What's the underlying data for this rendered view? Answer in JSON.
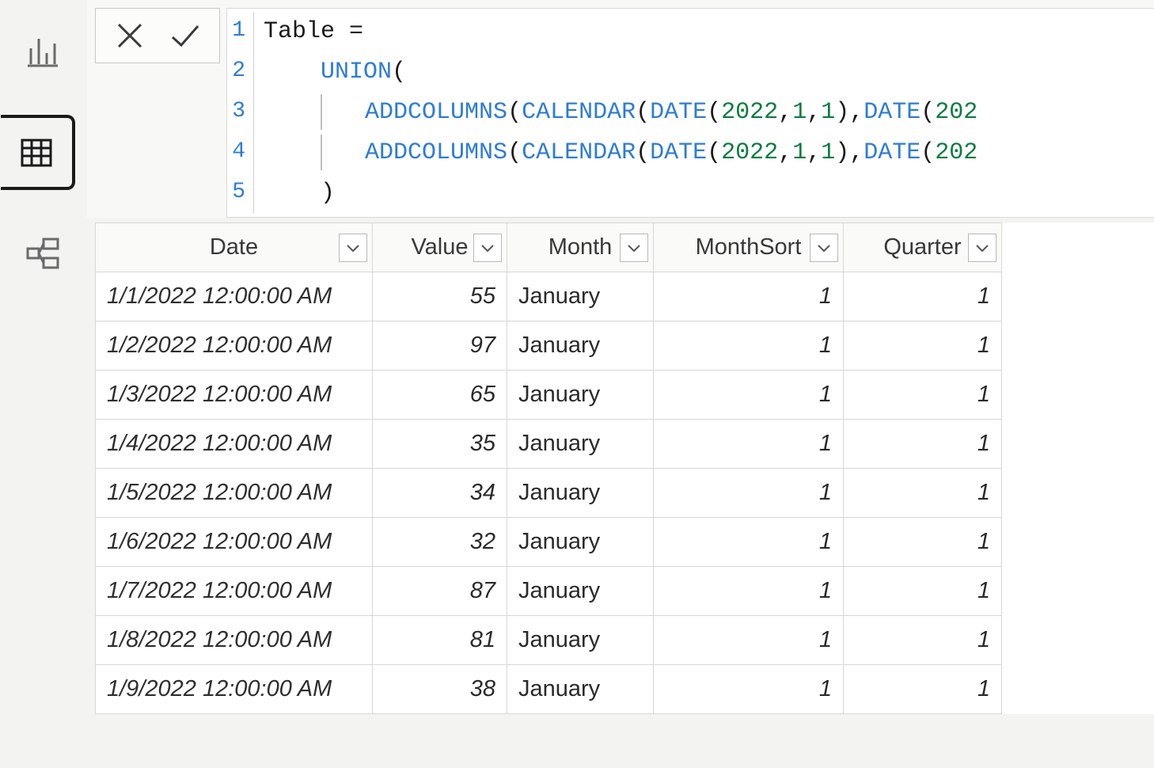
{
  "nav": {
    "items": [
      "report",
      "data",
      "model"
    ],
    "active": "data"
  },
  "formula": {
    "lines": [
      {
        "n": 1,
        "tokens": [
          {
            "t": "plain",
            "v": "Table = "
          }
        ]
      },
      {
        "n": 2,
        "tokens": [
          {
            "t": "plain",
            "v": "    "
          },
          {
            "t": "func",
            "v": "UNION"
          },
          {
            "t": "paren",
            "v": "("
          }
        ]
      },
      {
        "n": 3,
        "tokens": [
          {
            "t": "plain",
            "v": "        "
          },
          {
            "t": "func",
            "v": "ADDCOLUMNS"
          },
          {
            "t": "paren",
            "v": "("
          },
          {
            "t": "func",
            "v": "CALENDAR"
          },
          {
            "t": "paren",
            "v": "("
          },
          {
            "t": "func",
            "v": "DATE"
          },
          {
            "t": "paren",
            "v": "("
          },
          {
            "t": "num",
            "v": "2022"
          },
          {
            "t": "plain",
            "v": ","
          },
          {
            "t": "num",
            "v": "1"
          },
          {
            "t": "plain",
            "v": ","
          },
          {
            "t": "num",
            "v": "1"
          },
          {
            "t": "paren",
            "v": ")"
          },
          {
            "t": "plain",
            "v": ","
          },
          {
            "t": "func",
            "v": "DATE"
          },
          {
            "t": "paren",
            "v": "("
          },
          {
            "t": "num",
            "v": "202"
          }
        ]
      },
      {
        "n": 4,
        "tokens": [
          {
            "t": "plain",
            "v": "        "
          },
          {
            "t": "func",
            "v": "ADDCOLUMNS"
          },
          {
            "t": "paren",
            "v": "("
          },
          {
            "t": "func",
            "v": "CALENDAR"
          },
          {
            "t": "paren",
            "v": "("
          },
          {
            "t": "func",
            "v": "DATE"
          },
          {
            "t": "paren",
            "v": "("
          },
          {
            "t": "num",
            "v": "2022"
          },
          {
            "t": "plain",
            "v": ","
          },
          {
            "t": "num",
            "v": "1"
          },
          {
            "t": "plain",
            "v": ","
          },
          {
            "t": "num",
            "v": "1"
          },
          {
            "t": "paren",
            "v": ")"
          },
          {
            "t": "plain",
            "v": ","
          },
          {
            "t": "func",
            "v": "DATE"
          },
          {
            "t": "paren",
            "v": "("
          },
          {
            "t": "num",
            "v": "202"
          }
        ]
      },
      {
        "n": 5,
        "tokens": [
          {
            "t": "plain",
            "v": "    "
          },
          {
            "t": "paren",
            "v": ")"
          }
        ]
      }
    ],
    "indent_guide_lines": [
      3,
      4
    ]
  },
  "table": {
    "columns": [
      {
        "key": "date",
        "label": "Date",
        "header_class": "h-date",
        "cell_class": "col-date"
      },
      {
        "key": "value",
        "label": "Value",
        "header_class": "h-value",
        "cell_class": "col-value"
      },
      {
        "key": "month",
        "label": "Month",
        "header_class": "h-month",
        "cell_class": "col-month"
      },
      {
        "key": "msort",
        "label": "MonthSort",
        "header_class": "h-msort",
        "cell_class": "col-msort"
      },
      {
        "key": "quarter",
        "label": "Quarter",
        "header_class": "h-quarter",
        "cell_class": "col-quarter"
      }
    ],
    "rows": [
      {
        "date": "1/1/2022 12:00:00 AM",
        "value": "55",
        "month": "January",
        "msort": "1",
        "quarter": "1"
      },
      {
        "date": "1/2/2022 12:00:00 AM",
        "value": "97",
        "month": "January",
        "msort": "1",
        "quarter": "1"
      },
      {
        "date": "1/3/2022 12:00:00 AM",
        "value": "65",
        "month": "January",
        "msort": "1",
        "quarter": "1"
      },
      {
        "date": "1/4/2022 12:00:00 AM",
        "value": "35",
        "month": "January",
        "msort": "1",
        "quarter": "1"
      },
      {
        "date": "1/5/2022 12:00:00 AM",
        "value": "34",
        "month": "January",
        "msort": "1",
        "quarter": "1"
      },
      {
        "date": "1/6/2022 12:00:00 AM",
        "value": "32",
        "month": "January",
        "msort": "1",
        "quarter": "1"
      },
      {
        "date": "1/7/2022 12:00:00 AM",
        "value": "87",
        "month": "January",
        "msort": "1",
        "quarter": "1"
      },
      {
        "date": "1/8/2022 12:00:00 AM",
        "value": "81",
        "month": "January",
        "msort": "1",
        "quarter": "1"
      },
      {
        "date": "1/9/2022 12:00:00 AM",
        "value": "38",
        "month": "January",
        "msort": "1",
        "quarter": "1"
      }
    ]
  },
  "colors": {
    "bg": "#f3f3f1",
    "panel": "#ffffff",
    "border": "#d7d7d5",
    "func": "#2d7cd6",
    "num": "#0a7c3f",
    "text": "#1a1a1a"
  }
}
